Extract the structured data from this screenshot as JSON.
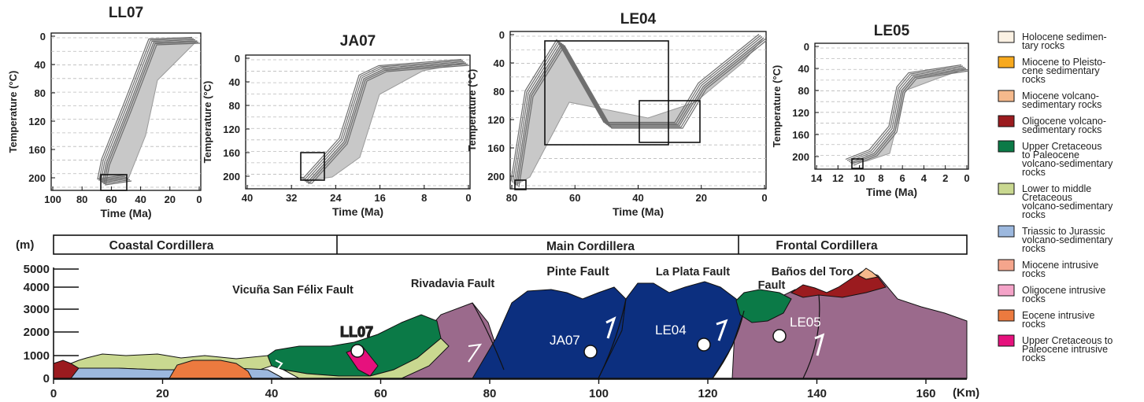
{
  "panels": [
    {
      "id": "LL07",
      "title": "LL07",
      "ylabel": "Temperature (°C)",
      "xlabel": "Time (Ma)",
      "yticks": [
        "0",
        "40",
        "80",
        "120",
        "160",
        "200"
      ],
      "xticks": [
        "100",
        "80",
        "60",
        "40",
        "20",
        "0"
      ]
    },
    {
      "id": "JA07",
      "title": "JA07",
      "ylabel": "Temperature (°C)",
      "xlabel": "Time (Ma)",
      "yticks": [
        "0",
        "40",
        "80",
        "120",
        "160",
        "200"
      ],
      "xticks": [
        "40",
        "32",
        "24",
        "16",
        "8",
        "0"
      ]
    },
    {
      "id": "LE04",
      "title": "LE04",
      "ylabel": "Temperature (°C)",
      "xlabel": "Time (Ma)",
      "yticks": [
        "0",
        "40",
        "80",
        "120",
        "160",
        "200"
      ],
      "xticks": [
        "80",
        "60",
        "40",
        "20",
        "0"
      ]
    },
    {
      "id": "LE05",
      "title": "LE05",
      "ylabel": "Temperature (°C)",
      "xlabel": "Time (Ma)",
      "yticks": [
        "0",
        "40",
        "80",
        "120",
        "160",
        "200"
      ],
      "xticks": [
        "14",
        "12",
        "10",
        "8",
        "6",
        "4",
        "2",
        "0"
      ]
    }
  ],
  "section": {
    "y_unit": "(m)",
    "x_unit": "(Km)",
    "yticks": [
      "5000",
      "4000",
      "3000",
      "2000",
      "1000",
      "0"
    ],
    "xticks": [
      "0",
      "20",
      "40",
      "60",
      "80",
      "100",
      "120",
      "140",
      "160"
    ],
    "regions": [
      "Coastal Cordillera",
      "Main Cordillera",
      "Frontal Cordillera"
    ],
    "faults": {
      "vicuna": "Vicuña San Félix Fault",
      "rivadavia": "Rivadavia Fault",
      "pinte": "Pinte Fault",
      "laplata": "La Plata Fault",
      "banos1": "Baños del Toro",
      "banos2": "Fault"
    },
    "samples": [
      "LL07",
      "JA07",
      "LE04",
      "LE05"
    ]
  },
  "legend": [
    {
      "lines": [
        "Holocene sedimen-",
        "tary rocks"
      ],
      "color": "#fbf1e3"
    },
    {
      "lines": [
        "Miocene to Pleisto-",
        "cene sedimentary",
        "rocks"
      ],
      "color": "#f7a91e"
    },
    {
      "lines": [
        "Miocene volcano-",
        "sedimentary rocks"
      ],
      "color": "#f5b98c"
    },
    {
      "lines": [
        "Oligocene volcano-",
        "sedimentary rocks"
      ],
      "color": "#9b1b1f"
    },
    {
      "lines": [
        "Upper Cretaceous",
        "to Paleocene",
        "volcano-sedimentary",
        "rocks"
      ],
      "color": "#0b7a47"
    },
    {
      "lines": [
        "Lower to middle",
        "Cretaceous",
        "volcano-sedimentary",
        "rocks"
      ],
      "color": "#c9d890"
    },
    {
      "lines": [
        "Triassic to Jurassic",
        "volcano-sedimentary",
        "rocks"
      ],
      "color": "#9cb8de"
    },
    {
      "lines": [
        "Miocene intrusive",
        "rocks"
      ],
      "color": "#f5a58c"
    },
    {
      "lines": [
        "Oligocene intrusive",
        "rocks"
      ],
      "color": "#f4a3c8"
    },
    {
      "lines": [
        "Eocene intrusive",
        "rocks"
      ],
      "color": "#ec7a3f"
    },
    {
      "lines": [
        "Upper Cretaceous to",
        "Paleocene intrusive",
        "rocks"
      ],
      "color": "#e6117d"
    }
  ],
  "colors": {
    "main_cordillera_blue": "#0c2f7f",
    "purple": "#9b6a8c",
    "green": "#0b7a47",
    "khaki": "#c9d890",
    "lightblue": "#9cb8de",
    "red": "#9b1b1f",
    "orange": "#ec7a3f",
    "pink": "#e6117d"
  }
}
